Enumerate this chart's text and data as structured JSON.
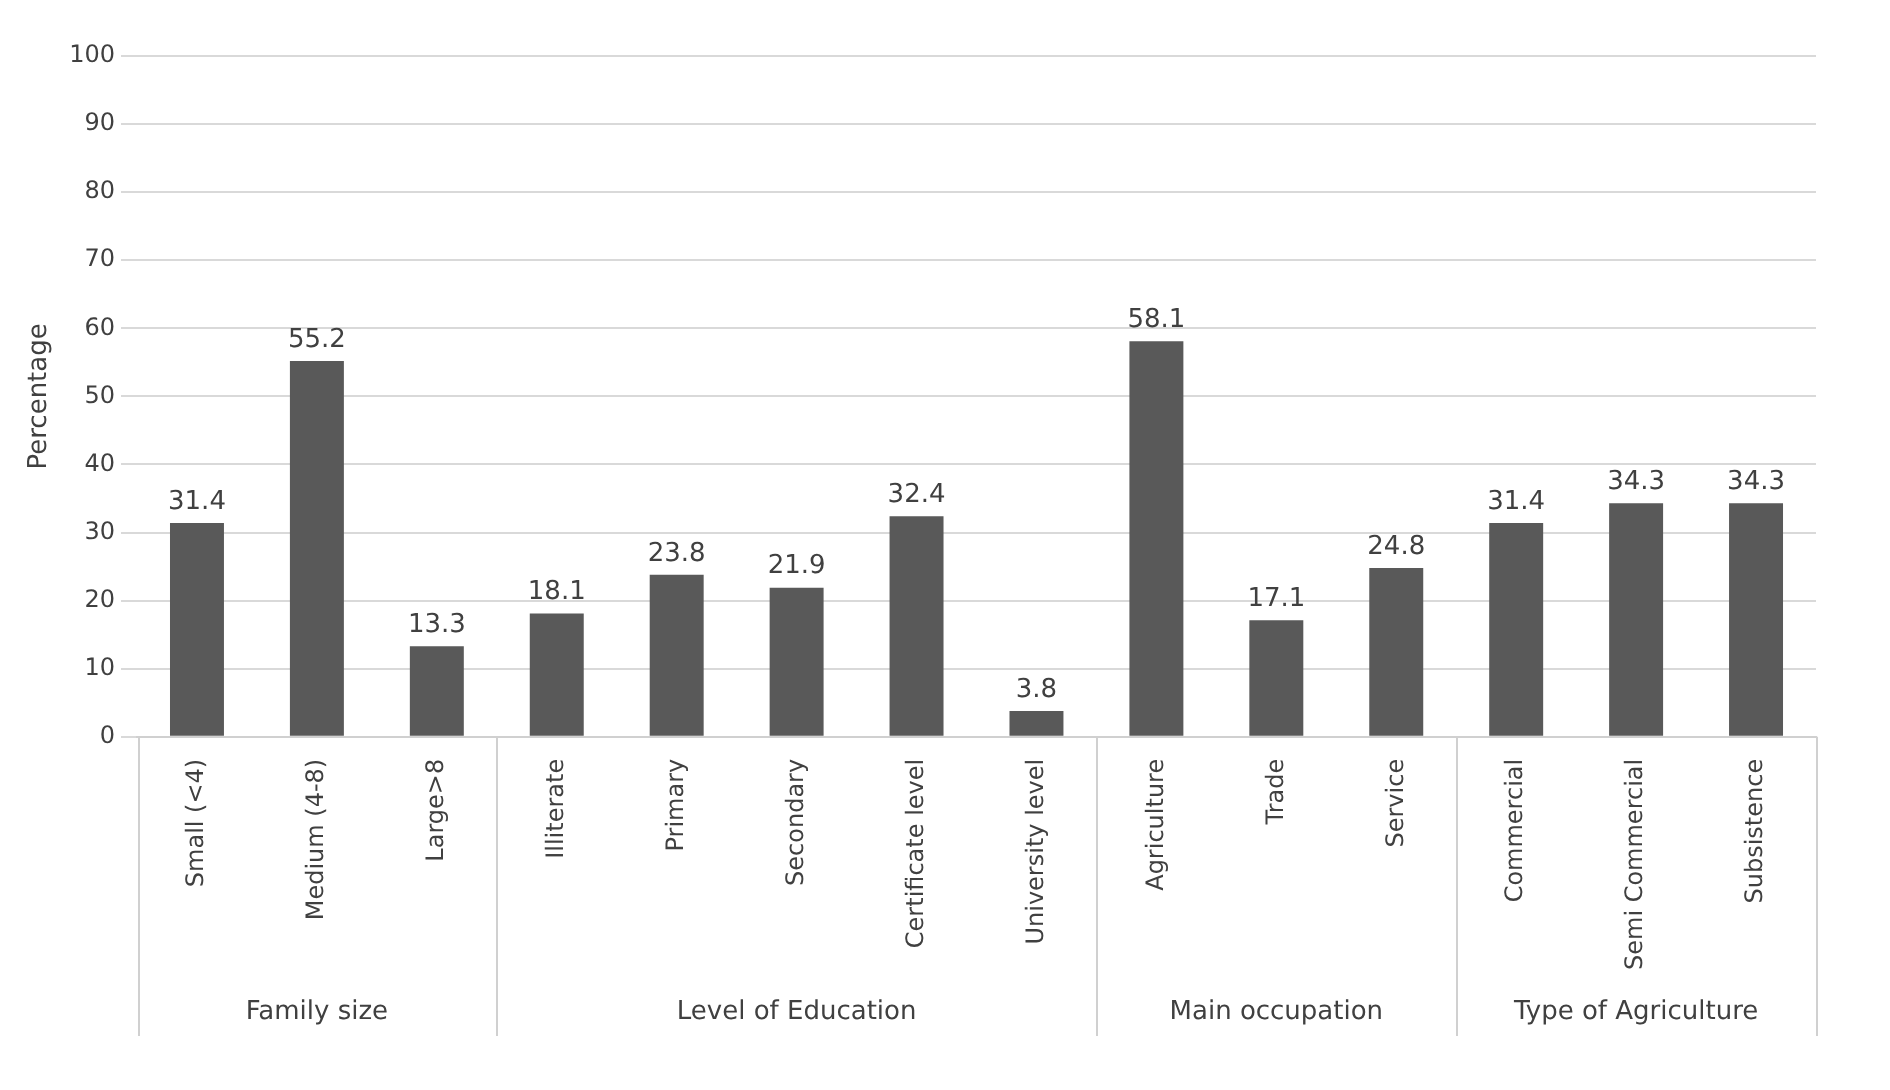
{
  "chart_data": {
    "type": "bar",
    "ylabel": "Percentage",
    "categories": [
      "Small (<4)",
      "Medium (4-8)",
      "Large>8",
      "Illiterate",
      "Primary",
      "Secondary",
      "Certificate level",
      "University level",
      "Agriculture",
      "Trade",
      "Service",
      "Commercial",
      "Semi Commercial",
      "Subsistence"
    ],
    "values": [
      31.4,
      55.2,
      13.3,
      18.1,
      23.8,
      21.9,
      32.4,
      3.8,
      58.1,
      17.1,
      24.8,
      31.4,
      34.3,
      34.3
    ],
    "color": "#595959",
    "ylim": [
      0,
      100
    ],
    "yticks": [
      0,
      10,
      20,
      30,
      40,
      50,
      60,
      70,
      80,
      90,
      100
    ],
    "grid": "y",
    "data_labels": true,
    "legend": false,
    "annotations": [
      "Family size",
      "Level of Education",
      "Main occupation",
      "Type of Agriculture"
    ]
  }
}
